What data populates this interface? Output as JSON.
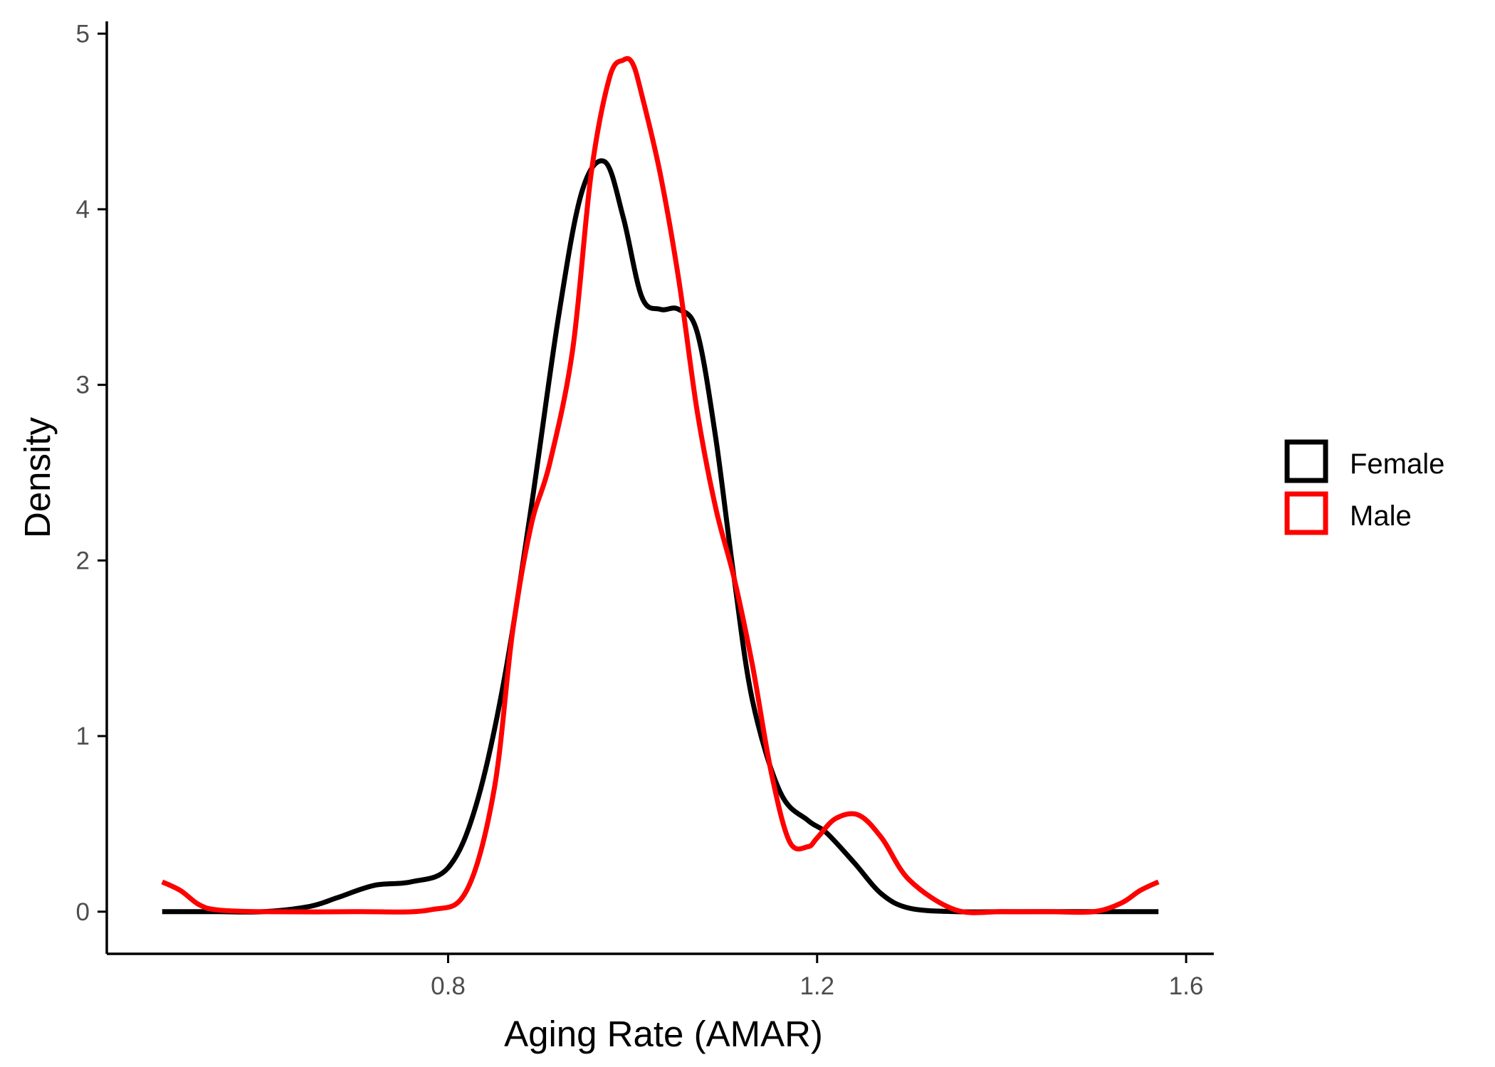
{
  "chart_data": {
    "type": "line",
    "title": "",
    "xlabel": "Aging Rate (AMAR)",
    "ylabel": "Density",
    "xlim": [
      0.43,
      1.63
    ],
    "ylim": [
      -0.24,
      5.07
    ],
    "x_ticks": [
      0.8,
      1.2,
      1.6
    ],
    "x_tick_labels": [
      "0.8",
      "1.2",
      "1.6"
    ],
    "y_ticks": [
      0,
      1,
      2,
      3,
      4,
      5
    ],
    "y_tick_labels": [
      "0",
      "1",
      "2",
      "3",
      "4",
      "5"
    ],
    "grid": false,
    "legend_position": "right",
    "series": [
      {
        "name": "Female",
        "color": "#000000",
        "x": [
          0.49,
          0.55,
          0.6,
          0.65,
          0.68,
          0.72,
          0.76,
          0.8,
          0.83,
          0.86,
          0.89,
          0.92,
          0.945,
          0.97,
          0.99,
          1.01,
          1.03,
          1.05,
          1.07,
          1.09,
          1.11,
          1.13,
          1.16,
          1.19,
          1.21,
          1.24,
          1.27,
          1.3,
          1.35,
          1.4,
          1.45,
          1.5,
          1.57
        ],
        "y": [
          0.0,
          0.0,
          0.0,
          0.03,
          0.08,
          0.15,
          0.17,
          0.25,
          0.6,
          1.3,
          2.3,
          3.4,
          4.1,
          4.27,
          3.95,
          3.5,
          3.43,
          3.43,
          3.3,
          2.7,
          1.9,
          1.2,
          0.68,
          0.52,
          0.45,
          0.28,
          0.1,
          0.02,
          0.0,
          0.0,
          0.0,
          0.0,
          0.0
        ]
      },
      {
        "name": "Male",
        "color": "#ff0000",
        "x": [
          0.49,
          0.51,
          0.53,
          0.55,
          0.6,
          0.7,
          0.78,
          0.82,
          0.85,
          0.87,
          0.89,
          0.91,
          0.935,
          0.955,
          0.975,
          0.99,
          1.0,
          1.01,
          1.03,
          1.05,
          1.07,
          1.09,
          1.11,
          1.13,
          1.15,
          1.17,
          1.19,
          1.2,
          1.22,
          1.245,
          1.27,
          1.3,
          1.35,
          1.4,
          1.45,
          1.5,
          1.53,
          1.55,
          1.57
        ],
        "y": [
          0.17,
          0.12,
          0.04,
          0.01,
          0.0,
          0.0,
          0.01,
          0.12,
          0.7,
          1.6,
          2.2,
          2.55,
          3.2,
          4.2,
          4.75,
          4.85,
          4.83,
          4.65,
          4.2,
          3.6,
          2.85,
          2.3,
          1.9,
          1.4,
          0.8,
          0.4,
          0.37,
          0.42,
          0.53,
          0.55,
          0.42,
          0.18,
          0.01,
          0.0,
          0.0,
          0.0,
          0.05,
          0.12,
          0.17
        ]
      }
    ]
  }
}
